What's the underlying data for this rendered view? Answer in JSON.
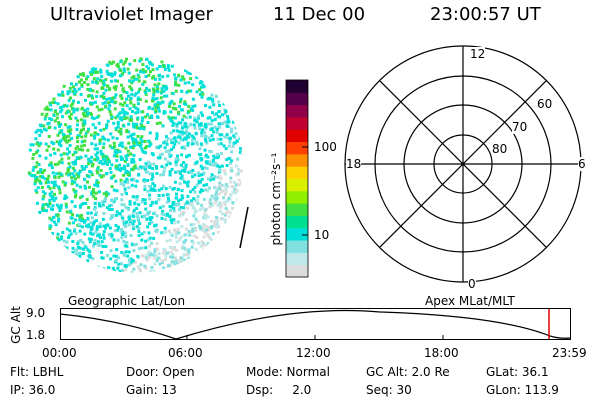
{
  "header": {
    "instrument": "Ultraviolet Imager",
    "date": "11 Dec 00",
    "time": "23:00:57 UT"
  },
  "colorbar": {
    "unit_label": "photon cm⁻²s⁻¹",
    "ticks": [
      "100",
      "10"
    ],
    "colors": [
      "#dcdcdc",
      "#bfe8e8",
      "#7fe0e0",
      "#00e0d8",
      "#00e090",
      "#40e040",
      "#90f000",
      "#d8f000",
      "#ffd000",
      "#ff9000",
      "#ff4000",
      "#e00000",
      "#c00030",
      "#90004a",
      "#55004a",
      "#200030"
    ]
  },
  "polar_plot": {
    "mlt_labels": {
      "top": "12",
      "left": "18",
      "right": "6",
      "bottom": "0"
    },
    "mlat_labels": [
      "60",
      "70",
      "80"
    ]
  },
  "altitude_strip": {
    "title_left": "Geographic Lat/Lon",
    "title_right": "Apex MLat/MLT",
    "axis_label": "GC Alt",
    "y_ticks": [
      "9.0",
      "1.8"
    ],
    "x_ticks": [
      "00:00",
      "06:00",
      "12:00",
      "18:00",
      "23:59"
    ],
    "marker_color": "#e00000"
  },
  "info": {
    "row1": [
      "Flt: LBHL",
      "Door: Open",
      "Mode: Normal",
      "GC Alt: 2.0 Re",
      "GLat:  36.1"
    ],
    "row2": [
      "IP: 36.0",
      "Gain: 13",
      "Dsp:     2.0",
      "Seq: 30",
      "GLon: 113.9"
    ]
  }
}
